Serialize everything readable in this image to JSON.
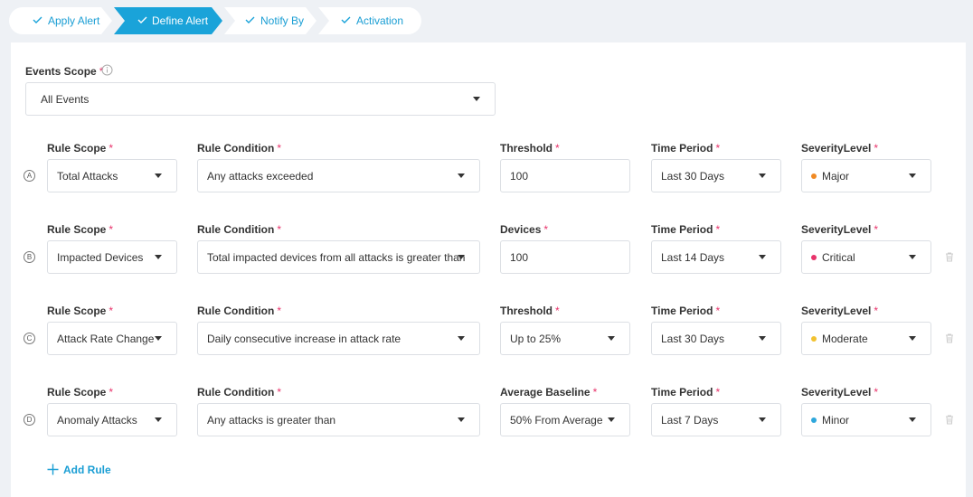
{
  "steps": [
    "Apply Alert",
    "Define Alert",
    "Notify By",
    "Activation"
  ],
  "required_mark": "*",
  "events_scope": {
    "label": "Events Scope",
    "value": "All Events"
  },
  "rules": [
    {
      "letter": "A",
      "fields": [
        {
          "label": "Rule Scope",
          "value": "Total Attacks"
        },
        {
          "label": "Rule Condition",
          "value": "Any attacks exceeded"
        },
        {
          "label": "Threshold",
          "value": 100
        },
        {
          "label": "Time Period",
          "value": "Last 30 Days"
        },
        {
          "label": "SeverityLevel",
          "value": "Major",
          "dot_color": "#f08a24"
        }
      ]
    },
    {
      "letter": "B",
      "fields": [
        {
          "label": "Rule Scope",
          "value": "Impacted Devices"
        },
        {
          "label": "Rule Condition",
          "value": "Total impacted devices from all attacks is greater than"
        },
        {
          "label": "Devices",
          "value": 100
        },
        {
          "label": "Time Period",
          "value": "Last 14 Days"
        },
        {
          "label": "SeverityLevel",
          "value": "Critical",
          "dot_color": "#e8336b"
        }
      ]
    },
    {
      "letter": "C",
      "fields": [
        {
          "label": "Rule Scope",
          "value": "Attack Rate Change"
        },
        {
          "label": "Rule Condition",
          "value": "Daily consecutive increase in attack rate"
        },
        {
          "label": "Threshold",
          "value": "Up to 25%"
        },
        {
          "label": "Time Period",
          "value": "Last 30 Days"
        },
        {
          "label": "SeverityLevel",
          "value": "Moderate",
          "dot_color": "#f2c230"
        }
      ]
    },
    {
      "letter": "D",
      "fields": [
        {
          "label": "Rule Scope",
          "value": "Anomaly Attacks"
        },
        {
          "label": "Rule Condition",
          "value": "Any attacks is greater than"
        },
        {
          "label": "Average Baseline",
          "value": "50% From Average"
        },
        {
          "label": "Time Period",
          "value": "Last 7 Days"
        },
        {
          "label": "SeverityLevel",
          "value": "Minor",
          "dot_color": "#2ea7dc"
        }
      ]
    }
  ],
  "add_rule": "Add Rule"
}
